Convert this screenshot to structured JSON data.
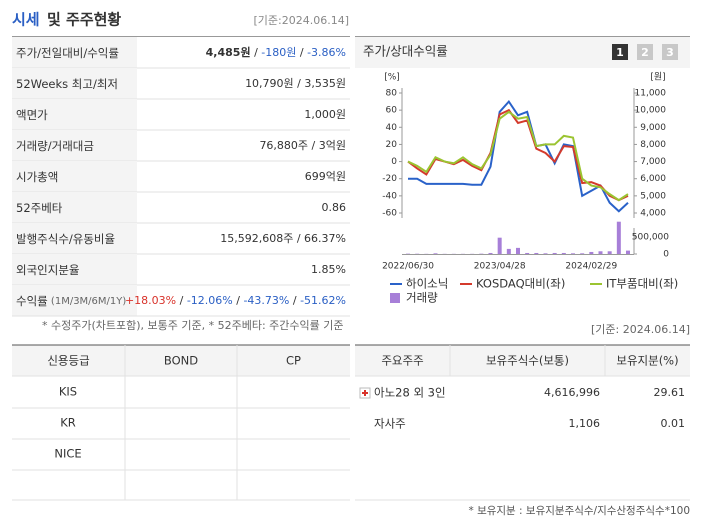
{
  "header": {
    "title_main": "시세",
    "title_rest": "및 주주현황",
    "date": "[기준:2024.06.14]"
  },
  "price_table": {
    "rows": [
      {
        "label": "주가/전일대비/수익률",
        "value": [
          "4,485원",
          " / ",
          "-180원",
          " / ",
          "-3.86%"
        ]
      },
      {
        "label": "52Weeks 최고/최저",
        "value": [
          "10,790원",
          " / ",
          "3,535원"
        ]
      },
      {
        "label": "액면가",
        "value": [
          "1,000원"
        ]
      },
      {
        "label": "거래량/거래대금",
        "value": [
          "76,880주",
          " / ",
          "3억원"
        ]
      },
      {
        "label": "시가총액",
        "value": [
          "699억원"
        ]
      },
      {
        "label": "52주베타",
        "value": [
          "0.86"
        ]
      },
      {
        "label": "발행주식수/유동비율",
        "value": [
          "15,592,608주",
          " / ",
          "66.37%"
        ]
      },
      {
        "label": "외국인지분율",
        "value": [
          "1.85%"
        ]
      },
      {
        "label": "수익률",
        "label_note": " (1M/3M/6M/1Y)",
        "value": [
          "+18.03%",
          " / ",
          "-12.06%",
          " / ",
          "-43.73%",
          " / ",
          "-51.62%"
        ]
      }
    ],
    "footnote": "* 수정주가(차트포함), 보통주 기준, * 52주베타: 주간수익률 기준"
  },
  "chart_panel": {
    "title": "주가/상대수익률",
    "tabs": [
      "1",
      "2",
      "3"
    ],
    "date": "[기준: 2024.06.14]"
  },
  "chart_data": {
    "type": "line",
    "y_label": "[%]",
    "y2_label": "[원]",
    "categories": [
      "2022/06/30",
      null,
      null,
      null,
      null,
      null,
      null,
      null,
      null,
      null,
      "2023/04/28",
      null,
      null,
      null,
      null,
      null,
      null,
      null,
      null,
      null,
      "2024/02/29",
      null,
      null,
      null,
      null
    ],
    "ylim": [
      -60,
      80
    ],
    "yticks": [
      80,
      60,
      40,
      20,
      0,
      -20,
      -40,
      -60
    ],
    "y2lim": [
      4000,
      11000
    ],
    "y2ticks": [
      {
        "value": 11000,
        "label": "11,000"
      },
      {
        "value": 10000,
        "label": "10,000"
      },
      {
        "value": 9000,
        "label": "9,000"
      },
      {
        "value": 8000,
        "label": "8,000"
      },
      {
        "value": 7000,
        "label": "7,000"
      },
      {
        "value": 6000,
        "label": "6,000"
      },
      {
        "value": 5000,
        "label": "5,000"
      },
      {
        "value": 4000,
        "label": "4,000"
      }
    ],
    "y3lim": [
      0,
      1000000
    ],
    "y3ticks": [
      {
        "value": 500000,
        "label": "500,000"
      },
      0
    ],
    "series": [
      {
        "name": "하이소닉",
        "color": "#2a62c9",
        "axis": "y2",
        "values": [
          6000,
          6000,
          5700,
          5700,
          5700,
          5700,
          5700,
          5650,
          5650,
          6700,
          9900,
          10500,
          9700,
          9900,
          7900,
          8000,
          6900,
          8000,
          7900,
          5000,
          5300,
          5600,
          4600,
          4100,
          4600
        ]
      },
      {
        "name": "KOSDAQ대비(좌)",
        "color": "#d43a2c",
        "values": [
          0,
          -8,
          -15,
          3,
          0,
          -3,
          2,
          -5,
          -10,
          10,
          55,
          60,
          45,
          48,
          15,
          10,
          0,
          18,
          17,
          -25,
          -24,
          -28,
          -40,
          -45,
          -40
        ]
      },
      {
        "name": "IT부품대비(좌)",
        "color": "#9bc431",
        "values": [
          0,
          -5,
          -12,
          5,
          0,
          -2,
          5,
          -3,
          -8,
          8,
          50,
          58,
          50,
          52,
          18,
          20,
          20,
          30,
          28,
          -20,
          -28,
          -30,
          -38,
          -45,
          -38
        ]
      },
      {
        "name": "거래량",
        "color": "#a77fd8",
        "axis": "y3",
        "kind": "bar",
        "values": [
          10000,
          8000,
          5000,
          20000,
          5000,
          5000,
          5000,
          5000,
          10000,
          30000,
          480000,
          150000,
          180000,
          30000,
          30000,
          20000,
          30000,
          30000,
          20000,
          20000,
          60000,
          80000,
          80000,
          950000,
          100000
        ]
      }
    ]
  },
  "credit_table": {
    "header": [
      "신용등급",
      "BOND",
      "CP"
    ],
    "rows": [
      [
        "KIS"
      ],
      [
        "KR"
      ],
      [
        "NICE"
      ]
    ]
  },
  "holder_table": {
    "header": [
      "주요주주",
      "보유주식수(보통)",
      "보유지분(%)"
    ],
    "rows": [
      [
        "아노28 외 3인",
        "4,616,996",
        "29.61"
      ],
      [
        "자사주",
        "1,106",
        "0.01"
      ]
    ],
    "footnote": "* 보유지분 : 보유지분주식수/지수산정주식수*100"
  }
}
